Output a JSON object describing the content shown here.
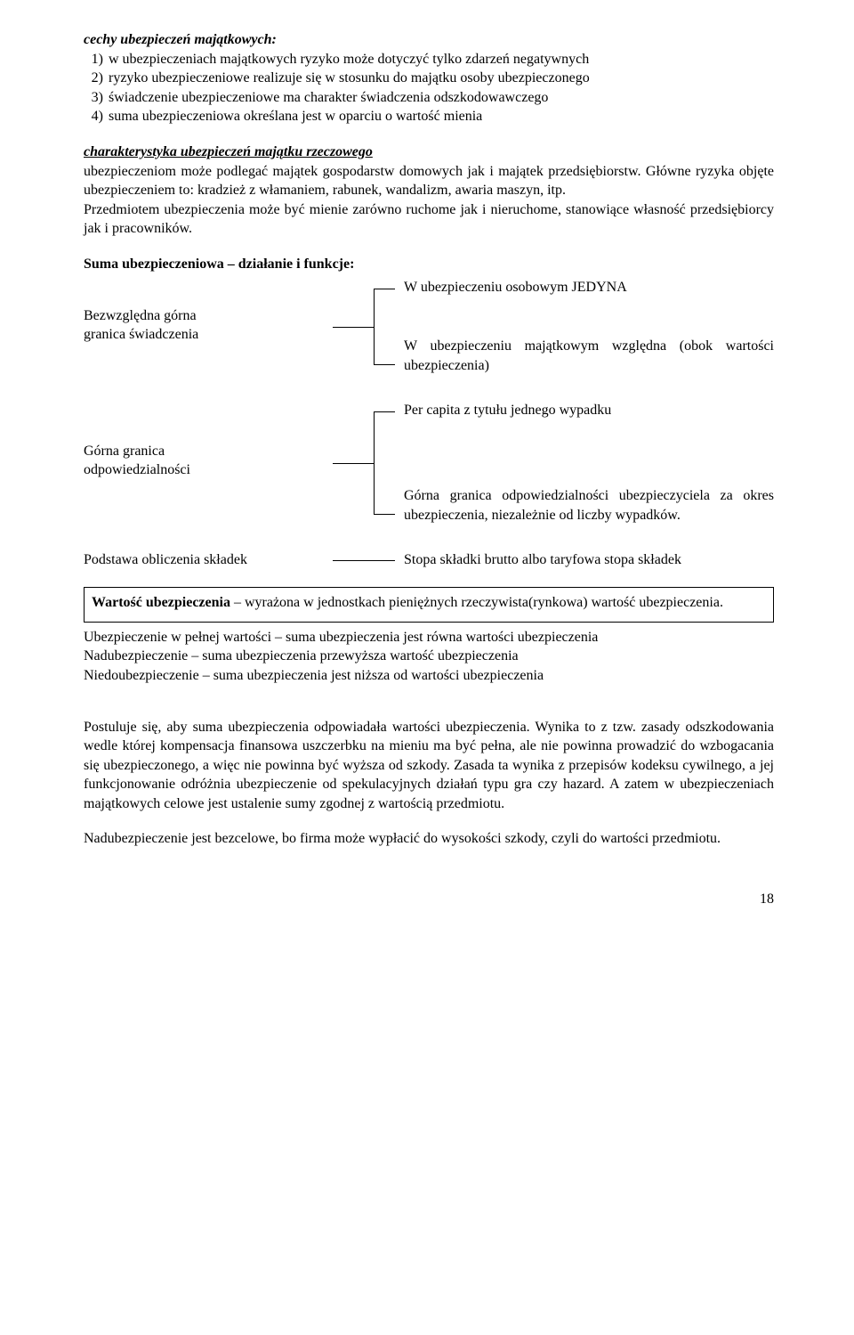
{
  "heading1": "cechy ubezpieczeń majątkowych:",
  "list1": [
    {
      "n": "1)",
      "t": "w ubezpieczeniach majątkowych ryzyko może dotyczyć tylko zdarzeń negatywnych"
    },
    {
      "n": "2)",
      "t": "ryzyko ubezpieczeniowe realizuje się w stosunku do majątku osoby ubezpieczonego"
    },
    {
      "n": "3)",
      "t": "świadczenie ubezpieczeniowe ma charakter świadczenia odszkodowawczego"
    },
    {
      "n": "4)",
      "t": "suma ubezpieczeniowa określana jest w oparciu o wartość mienia"
    }
  ],
  "heading2": "charakterystyka ubezpieczeń majątku rzeczowego",
  "para1": "ubezpieczeniom może podlegać majątek gospodarstw domowych jak i majątek przedsiębiorstw. Główne ryzyka objęte ubezpieczeniem to: kradzież z włamaniem, rabunek, wandalizm, awaria maszyn, itp.",
  "para2": "Przedmiotem ubezpieczenia może być mienie zarówno ruchome jak i nieruchome, stanowiące własność przedsiębiorcy jak i pracowników.",
  "heading3": "Suma ubezpieczeniowa – działanie i funkcje:",
  "d1": {
    "left1": "Bezwzględna górna",
    "left2": "granica świadczenia",
    "r1": "W ubezpieczeniu osobowym JEDYNA",
    "r2": "W ubezpieczeniu majątkowym względna (obok wartości ubezpieczenia)"
  },
  "d2": {
    "left1": "Górna granica",
    "left2": "odpowiedzialności",
    "r1": "Per capita z tytułu jednego wypadku",
    "r2": "Górna granica odpowiedzialności ubezpieczyciela za okres ubezpieczenia, niezależnie od liczby wypadków."
  },
  "d3": {
    "left": "Podstawa obliczenia składek",
    "right": "Stopa składki brutto albo taryfowa stopa składek"
  },
  "box": {
    "bold": "Wartość ubezpieczenia",
    "rest": " – wyrażona w jednostkach pieniężnych rzeczywista(rynkowa) wartość ubezpieczenia."
  },
  "after1": "Ubezpieczenie w pełnej wartości – suma ubezpieczenia jest równa wartości ubezpieczenia",
  "after2": "Nadubezpieczenie – suma ubezpieczenia przewyższa wartość ubezpieczenia",
  "after3": "Niedoubezpieczenie – suma ubezpieczenia jest niższa od wartości ubezpieczenia",
  "para3": "Postuluje się, aby suma ubezpieczenia odpowiadała wartości ubezpieczenia. Wynika to z tzw. zasady odszkodowania wedle której kompensacja finansowa uszczerbku na mieniu ma być pełna, ale nie powinna prowadzić do wzbogacania się ubezpieczonego, a więc nie powinna być wyższa od szkody. Zasada ta wynika z przepisów kodeksu cywilnego, a jej funkcjonowanie odróżnia ubezpieczenie od spekulacyjnych działań typu gra czy hazard. A zatem w ubezpieczeniach majątkowych celowe jest ustalenie sumy zgodnej z wartością przedmiotu.",
  "para4": "Nadubezpieczenie jest bezcelowe, bo firma może wypłacić do wysokości szkody, czyli do wartości przedmiotu.",
  "pagenum": "18"
}
